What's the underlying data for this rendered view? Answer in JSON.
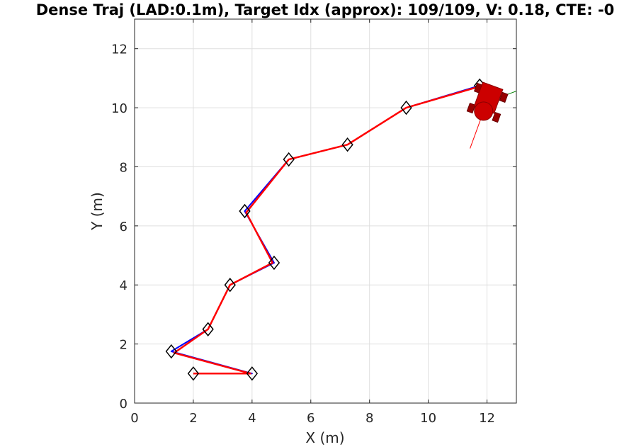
{
  "chart_data": {
    "type": "line",
    "title": "Dense Traj (LAD:0.1m), Target Idx (approx): 109/109, V: 0.18, CTE: -0",
    "xlabel": "X (m)",
    "ylabel": "Y (m)",
    "xlim": [
      0,
      13
    ],
    "ylim": [
      0,
      13
    ],
    "grid": true,
    "xticks": [
      0,
      2,
      4,
      6,
      8,
      10,
      12
    ],
    "yticks": [
      0,
      2,
      4,
      6,
      8,
      10,
      12
    ],
    "xtick_labels": [
      "0",
      "2",
      "4",
      "6",
      "8",
      "10",
      "12"
    ],
    "ytick_labels": [
      "0",
      "2",
      "4",
      "6",
      "8",
      "10",
      "12"
    ],
    "waypoints": {
      "x": [
        2,
        4,
        1.25,
        2.5,
        3.25,
        4.75,
        3.75,
        5.25,
        7.25,
        9.25,
        11.75
      ],
      "y": [
        1,
        1,
        1.75,
        2.5,
        4,
        4.75,
        6.5,
        8.25,
        8.75,
        10,
        10.75
      ]
    },
    "series": [
      {
        "color": "#0000ff",
        "x": [
          2,
          4,
          1.25,
          2.5,
          3.25,
          4.75,
          3.75,
          5.25,
          7.25,
          9.25,
          11.75
        ],
        "y": [
          1,
          1,
          1.75,
          2.5,
          4,
          4.75,
          6.5,
          8.25,
          8.75,
          10,
          10.75
        ]
      },
      {
        "color": "#ff0000",
        "x": [
          2,
          3.95,
          1.35,
          2.5,
          3.25,
          4.7,
          3.8,
          5.25,
          7.25,
          9.25,
          11.75
        ],
        "y": [
          1,
          1,
          1.7,
          2.5,
          4,
          4.75,
          6.45,
          8.25,
          8.75,
          10,
          10.72
        ]
      }
    ],
    "vehicle": {
      "x": 12.0,
      "y": 10.2,
      "heading_deg": 70,
      "color": "#cc0000",
      "wheel_color": "#990000"
    },
    "heading_line_color": "#ff0000",
    "lateral_line_color": "#008000"
  }
}
